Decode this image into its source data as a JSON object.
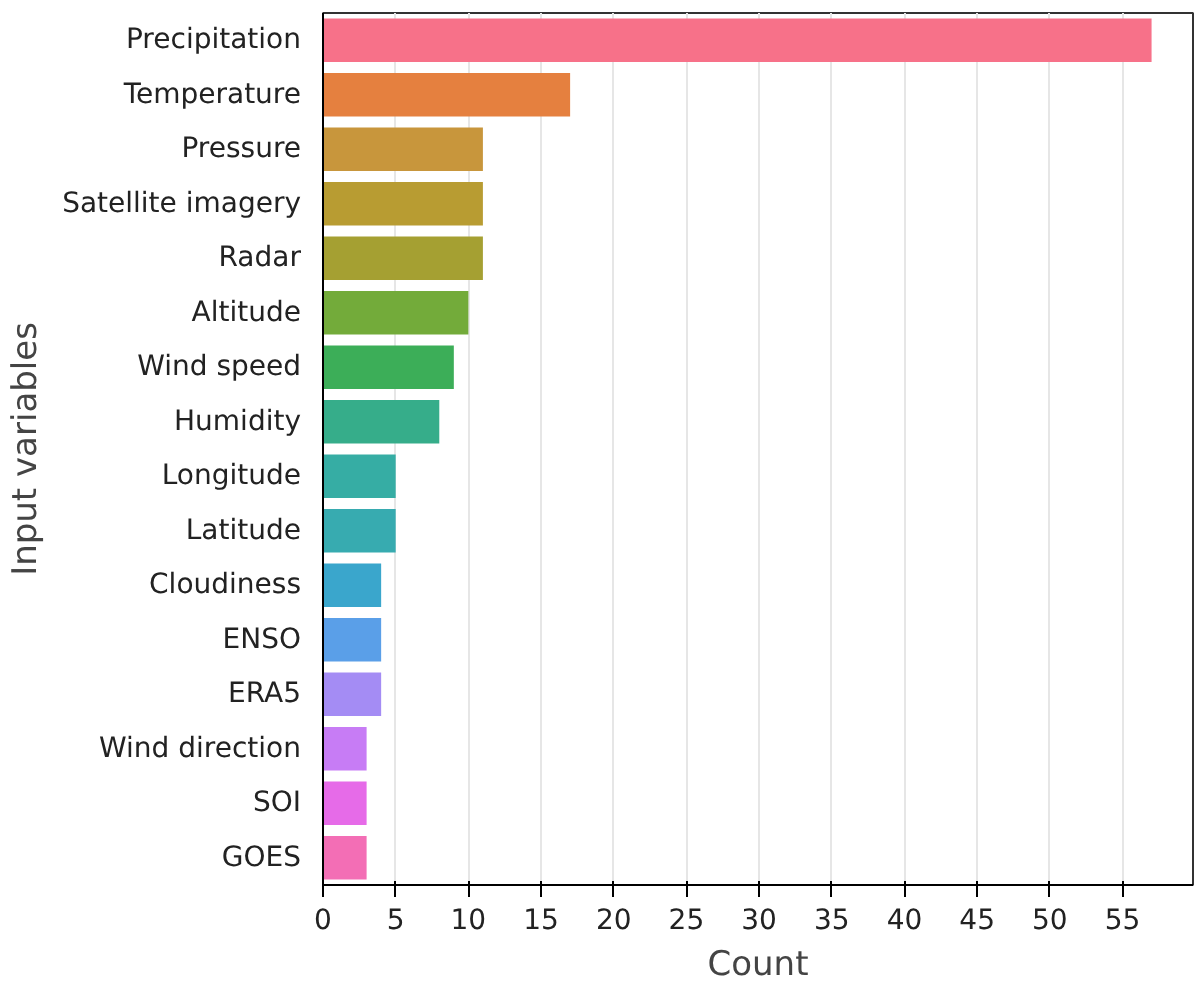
{
  "chart_data": {
    "type": "bar",
    "orientation": "horizontal",
    "xlabel": "Count",
    "ylabel": "Input variables",
    "categories": [
      "Precipitation",
      "Temperature",
      "Pressure",
      "Satellite imagery",
      "Radar",
      "Altitude",
      "Wind speed",
      "Humidity",
      "Longitude",
      "Latitude",
      "Cloudiness",
      "ENSO",
      "ERA5",
      "Wind direction",
      "SOI",
      "GOES"
    ],
    "values": [
      57,
      17,
      11,
      11,
      11,
      10,
      9,
      8,
      5,
      5,
      4,
      4,
      4,
      3,
      3,
      3
    ],
    "colors": [
      "#f77189",
      "#e5803f",
      "#c8963c",
      "#b89c32",
      "#a5a032",
      "#73ab3a",
      "#3cae58",
      "#36ad8a",
      "#36ada4",
      "#37abb0",
      "#3aa6cc",
      "#5a9fe8",
      "#a48cf4",
      "#c77cf5",
      "#e66be8",
      "#f36eb5"
    ],
    "xlim": [
      0,
      59.85
    ],
    "xticks": [
      0,
      5,
      10,
      15,
      20,
      25,
      30,
      35,
      40,
      45,
      50,
      55
    ],
    "grid": "x"
  }
}
